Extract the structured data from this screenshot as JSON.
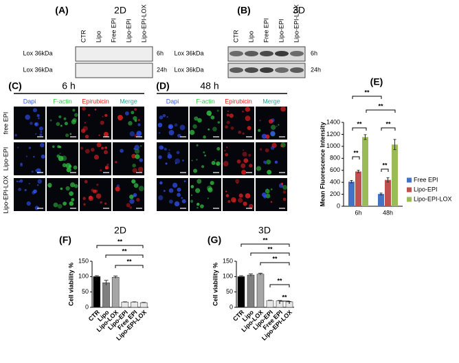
{
  "blots": [
    {
      "label": "(A)",
      "title": "2D",
      "lanes": [
        "CTR",
        "Lipo",
        "Free EPI",
        "Lipo-EPI",
        "Lipo-EPI-LOX"
      ],
      "rows": [
        {
          "protein": "Lox 36kDa",
          "time": "6h"
        },
        {
          "protein": "Lox 36kDa",
          "time": "24h"
        }
      ]
    },
    {
      "label": "(B)",
      "title": "3D",
      "lanes": [
        "CTR",
        "Lipo",
        "Free EPI",
        "Lipo-EPI",
        "Lipo-EPI-LOX"
      ],
      "rows": [
        {
          "protein": "Lox 36kDa",
          "time": "6h"
        },
        {
          "protein": "Lox 36kDa",
          "time": "24h"
        }
      ]
    }
  ],
  "microscopy": [
    {
      "label": "(C)",
      "title": "6 h",
      "channels": [
        "Dapi",
        "F-actin",
        "Epirubicin",
        "Merge"
      ],
      "rows": [
        "free EPI",
        "Lipo-EPI",
        "Lipo-EPI-LOX"
      ]
    },
    {
      "label": "(D)",
      "title": "48 h",
      "channels": [
        "Dapi",
        "F-actin",
        "Epirubicin",
        "Merge"
      ]
    }
  ],
  "chart_data": [
    {
      "type": "bar",
      "label": "(E)",
      "y_label": "Mean Fluorescence Intensity",
      "categories": [
        "6h",
        "48h"
      ],
      "series": [
        {
          "name": "Free EPI",
          "color": "#4472c4",
          "values": [
            410,
            205
          ],
          "errors": [
            20,
            15
          ]
        },
        {
          "name": "Lipo-EPI",
          "color": "#c0504d",
          "values": [
            580,
            440
          ],
          "errors": [
            20,
            35
          ]
        },
        {
          "name": "Lipo-EPI-LOX",
          "color": "#9bbb59",
          "values": [
            1155,
            1030
          ],
          "errors": [
            40,
            85
          ]
        }
      ],
      "ylim": [
        0,
        1400
      ],
      "yticks": [
        0,
        200,
        400,
        600,
        800,
        1000,
        1200,
        1400
      ],
      "annotations": [
        "**",
        "**",
        "**",
        "**",
        "**",
        "**"
      ],
      "legend": "right"
    },
    {
      "type": "bar",
      "label": "(F)",
      "title": "2D",
      "y_label": "Cell viability %",
      "categories": [
        "CTR",
        "Lipo",
        "Lipo-LOX",
        "Lipo-EPI",
        "Free EPI",
        "Lipo-EPI-LOX"
      ],
      "values": [
        100,
        80,
        98,
        17,
        17,
        15
      ],
      "errors": [
        3,
        8,
        4,
        1,
        1,
        1
      ],
      "colors": [
        "#000000",
        "#7f7f7f",
        "#a6a6a6",
        "#e6e6e6",
        "#e6e6e6",
        "#e6e6e6"
      ],
      "ylim": [
        0,
        150
      ],
      "yticks": [
        0,
        50,
        100,
        150
      ],
      "annotations": [
        "**",
        "**",
        "**"
      ]
    },
    {
      "type": "bar",
      "label": "(G)",
      "title": "3D",
      "y_label": "Cell viability %",
      "categories": [
        "CTR",
        "Lipo",
        "Lipo-LOX",
        "Lipo-EPI",
        "Free EPI",
        "Lipo-EPI-LOX"
      ],
      "values": [
        100,
        105,
        108,
        22,
        21,
        18
      ],
      "errors": [
        3,
        4,
        3,
        1,
        1,
        1
      ],
      "colors": [
        "#000000",
        "#7f7f7f",
        "#a6a6a6",
        "#e6e6e6",
        "#e6e6e6",
        "#e6e6e6"
      ],
      "ylim": [
        0,
        150
      ],
      "yticks": [
        0,
        50,
        100,
        150
      ],
      "annotations": [
        "**",
        "**",
        "**",
        "**",
        "**"
      ]
    }
  ]
}
